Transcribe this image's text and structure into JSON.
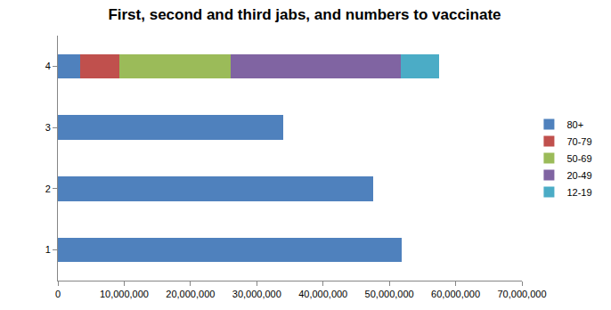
{
  "chart_data": {
    "type": "bar",
    "title": "First, second and third jabs, and numbers to vaccinate",
    "orientation": "horizontal",
    "stacked": true,
    "grid": false,
    "legend": "right",
    "categories": [
      "1",
      "2",
      "3",
      "4"
    ],
    "series": [
      {
        "name": "80+",
        "color": "#4f81bd",
        "values": [
          51800000,
          47500000,
          34000000,
          3300000
        ]
      },
      {
        "name": "70-79",
        "color": "#c0504d",
        "values": [
          null,
          null,
          null,
          6000000
        ]
      },
      {
        "name": "50-69",
        "color": "#9bbb59",
        "values": [
          null,
          null,
          null,
          16700000
        ]
      },
      {
        "name": "20-49",
        "color": "#8064a2",
        "values": [
          null,
          null,
          null,
          25700000
        ]
      },
      {
        "name": "12-19",
        "color": "#4bacc6",
        "values": [
          null,
          null,
          null,
          5800000
        ]
      }
    ],
    "xlim": [
      0,
      70000000
    ],
    "xticks": [
      0,
      {
        "value": 10000000,
        "label": "10,000,000"
      },
      {
        "value": 20000000,
        "label": "20,000,000"
      },
      {
        "value": 30000000,
        "label": "30,000,000"
      },
      {
        "value": 40000000,
        "label": "40,000,000"
      },
      {
        "value": 50000000,
        "label": "50,000,000"
      },
      {
        "value": 60000000,
        "label": "60,000,000"
      },
      {
        "value": 70000000,
        "label": "70,000,000"
      }
    ]
  }
}
